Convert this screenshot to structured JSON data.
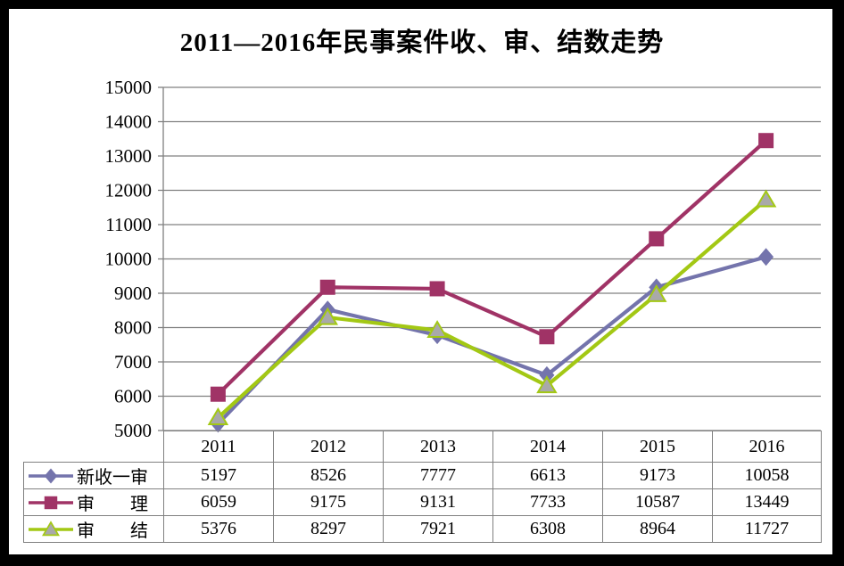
{
  "title": "2011—2016年民事案件收、审、结数走势",
  "colors": {
    "frame": "#000000",
    "background": "#FFFFFF",
    "grid": "#808080",
    "axis": "#808080",
    "table_border": "#808080",
    "text": "#000000"
  },
  "chart_data": {
    "type": "line",
    "title": "2011—2016年民事案件收、审、结数走势",
    "categories": [
      "2011",
      "2012",
      "2013",
      "2014",
      "2015",
      "2016"
    ],
    "series": [
      {
        "name": "新收一审",
        "values": [
          5197,
          8526,
          7777,
          6613,
          9173,
          10058
        ],
        "line_color": "#7474AC",
        "marker": "diamond",
        "marker_fill": "#7474AC"
      },
      {
        "name": "审　　理",
        "values": [
          6059,
          9175,
          9131,
          7733,
          10587,
          13449
        ],
        "line_color": "#A03366",
        "marker": "square",
        "marker_fill": "#A03366"
      },
      {
        "name": "审　　结",
        "values": [
          5376,
          8297,
          7921,
          6308,
          8964,
          11727
        ],
        "line_color": "#A3C814",
        "marker": "triangle",
        "marker_fill": "#A9A9A9"
      }
    ],
    "ylim": [
      5000,
      15000
    ],
    "y_ticks": [
      5000,
      6000,
      7000,
      8000,
      9000,
      10000,
      11000,
      12000,
      13000,
      14000,
      15000
    ],
    "grid": true,
    "legend_position": "data-table-left-column",
    "xlabel": "",
    "ylabel": ""
  }
}
